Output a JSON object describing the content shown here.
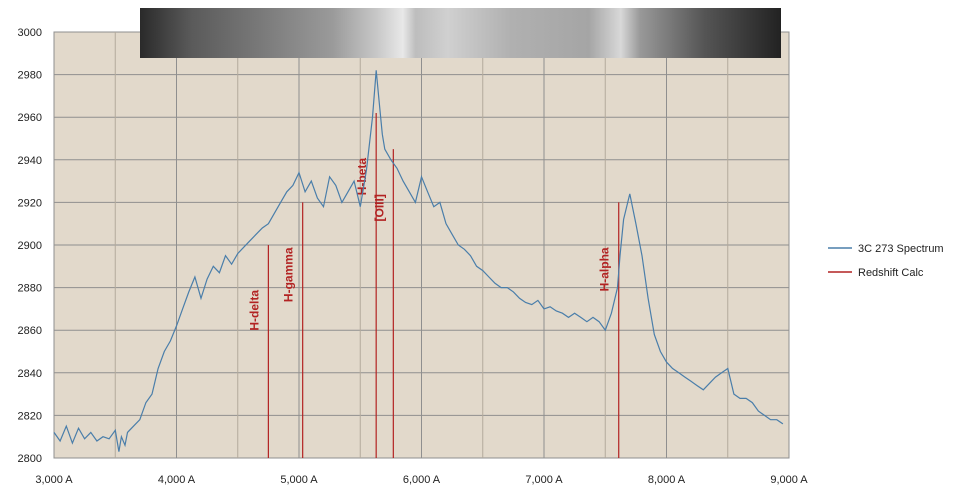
{
  "chart_data": {
    "type": "line",
    "title": "",
    "xlabel": "",
    "ylabel": "",
    "xlim": [
      3000,
      9000
    ],
    "ylim": [
      2800,
      3000
    ],
    "x_ticks": [
      3000,
      4000,
      5000,
      6000,
      7000,
      8000,
      9000
    ],
    "x_tick_labels": [
      "3,000 A",
      "4,000 A",
      "5,000 A",
      "6,000 A",
      "7,000 A",
      "8,000 A",
      "9,000 A"
    ],
    "y_ticks": [
      2800,
      2820,
      2840,
      2860,
      2880,
      2900,
      2920,
      2940,
      2960,
      2980,
      3000
    ],
    "y_tick_labels": [
      "2800",
      "2820",
      "2840",
      "2860",
      "2880",
      "2900",
      "2920",
      "2940",
      "2960",
      "2980",
      "3000"
    ],
    "grid": true,
    "plot_background": "#e2d9cb",
    "legend_position": "right",
    "series": [
      {
        "name": "3C 273 Spectrum",
        "color": "#4a7eaa",
        "x": [
          3000,
          3050,
          3100,
          3150,
          3200,
          3250,
          3300,
          3350,
          3400,
          3450,
          3500,
          3530,
          3550,
          3580,
          3600,
          3650,
          3700,
          3750,
          3800,
          3850,
          3900,
          3950,
          4000,
          4050,
          4100,
          4150,
          4200,
          4250,
          4300,
          4350,
          4400,
          4450,
          4500,
          4550,
          4600,
          4650,
          4700,
          4750,
          4800,
          4850,
          4900,
          4950,
          5000,
          5050,
          5100,
          5150,
          5200,
          5250,
          5300,
          5350,
          5400,
          5450,
          5500,
          5550,
          5600,
          5630,
          5650,
          5680,
          5700,
          5750,
          5800,
          5850,
          5900,
          5950,
          6000,
          6050,
          6100,
          6150,
          6200,
          6250,
          6300,
          6350,
          6400,
          6450,
          6500,
          6550,
          6600,
          6650,
          6700,
          6750,
          6800,
          6850,
          6900,
          6950,
          7000,
          7050,
          7100,
          7150,
          7200,
          7250,
          7300,
          7350,
          7400,
          7450,
          7500,
          7550,
          7600,
          7620,
          7650,
          7700,
          7750,
          7800,
          7850,
          7900,
          7950,
          8000,
          8050,
          8100,
          8150,
          8200,
          8250,
          8300,
          8350,
          8400,
          8450,
          8500,
          8550,
          8600,
          8650,
          8700,
          8750,
          8800,
          8850,
          8900,
          8950
        ],
        "values": [
          2812,
          2808,
          2815,
          2807,
          2814,
          2809,
          2812,
          2808,
          2810,
          2809,
          2813,
          2803,
          2810,
          2806,
          2812,
          2815,
          2818,
          2826,
          2830,
          2842,
          2850,
          2855,
          2862,
          2870,
          2878,
          2885,
          2875,
          2884,
          2890,
          2887,
          2895,
          2891,
          2896,
          2899,
          2902,
          2905,
          2908,
          2910,
          2915,
          2920,
          2925,
          2928,
          2934,
          2925,
          2930,
          2922,
          2918,
          2932,
          2928,
          2920,
          2925,
          2930,
          2918,
          2935,
          2960,
          2982,
          2970,
          2952,
          2945,
          2940,
          2936,
          2930,
          2925,
          2920,
          2932,
          2925,
          2918,
          2920,
          2910,
          2905,
          2900,
          2898,
          2895,
          2890,
          2888,
          2885,
          2882,
          2880,
          2880,
          2878,
          2875,
          2873,
          2872,
          2874,
          2870,
          2871,
          2869,
          2868,
          2866,
          2868,
          2866,
          2864,
          2866,
          2864,
          2860,
          2868,
          2880,
          2895,
          2912,
          2924,
          2910,
          2895,
          2875,
          2858,
          2850,
          2845,
          2842,
          2840,
          2838,
          2836,
          2834,
          2832,
          2835,
          2838,
          2840,
          2842,
          2830,
          2828,
          2828,
          2826,
          2822,
          2820,
          2818,
          2818,
          2816
        ]
      },
      {
        "name": "Redshift Calc",
        "color": "#b22222",
        "lines": [
          {
            "label": "H-delta",
            "x": 4750,
            "top": 2900
          },
          {
            "label": "H-gamma",
            "x": 5030,
            "top": 2920
          },
          {
            "label": "H-beta",
            "x": 5630,
            "top": 2962
          },
          {
            "label": "[OIII]",
            "x": 5770,
            "top": 2945
          },
          {
            "label": "H-alpha",
            "x": 7610,
            "top": 2920
          }
        ]
      }
    ]
  }
}
